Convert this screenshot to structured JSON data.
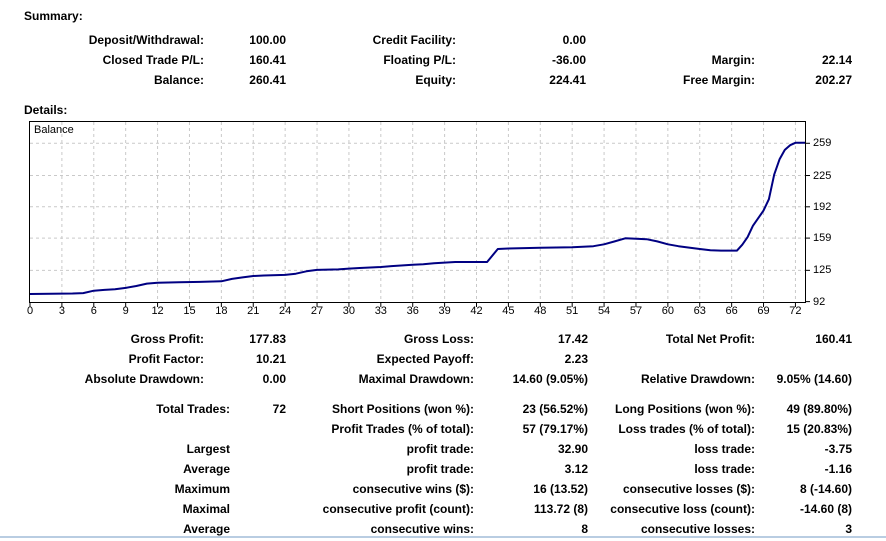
{
  "summary": {
    "title": "Summary:",
    "rows": [
      {
        "l1": "Deposit/Withdrawal:",
        "v1": "100.00",
        "l2": "Credit Facility:",
        "v2": "0.00",
        "l3": "",
        "v3": ""
      },
      {
        "l1": "Closed Trade P/L:",
        "v1": "160.41",
        "l2": "Floating P/L:",
        "v2": "-36.00",
        "l3": "Margin:",
        "v3": "22.14"
      },
      {
        "l1": "Balance:",
        "v1": "260.41",
        "l2": "Equity:",
        "v2": "224.41",
        "l3": "Free Margin:",
        "v3": "202.27"
      }
    ]
  },
  "details": {
    "title": "Details:",
    "stats_a": [
      {
        "l1": "Gross Profit:",
        "v1": "177.83",
        "l2": "Gross Loss:",
        "v2": "17.42",
        "l3": "Total Net Profit:",
        "v3": "160.41"
      },
      {
        "l1": "Profit Factor:",
        "v1": "10.21",
        "l2": "Expected Payoff:",
        "v2": "2.23",
        "l3": "",
        "v3": ""
      },
      {
        "l1": "Absolute Drawdown:",
        "v1": "0.00",
        "l2": "Maximal Drawdown:",
        "v2": "14.60 (9.05%)",
        "l3": "Relative Drawdown:",
        "v3": "9.05% (14.60)"
      }
    ],
    "stats_b": [
      {
        "l1": "Total Trades:",
        "v1": "72",
        "l2": "Short Positions (won %):",
        "v2": "23 (56.52%)",
        "l3": "Long Positions (won %):",
        "v3": "49 (89.80%)"
      },
      {
        "l1": "",
        "v1": "",
        "l2": "Profit Trades (% of total):",
        "v2": "57 (79.17%)",
        "l3": "Loss trades (% of total):",
        "v3": "15 (20.83%)"
      },
      {
        "l1": "Largest",
        "v1": "",
        "l2": "profit trade:",
        "v2": "32.90",
        "l3": "loss trade:",
        "v3": "-3.75"
      },
      {
        "l1": "Average",
        "v1": "",
        "l2": "profit trade:",
        "v2": "3.12",
        "l3": "loss trade:",
        "v3": "-1.16"
      },
      {
        "l1": "Maximum",
        "v1": "",
        "l2": "consecutive wins ($):",
        "v2": "16 (13.52)",
        "l3": "consecutive losses ($):",
        "v3": "8 (-14.60)"
      },
      {
        "l1": "Maximal",
        "v1": "",
        "l2": "consecutive profit (count):",
        "v2": "113.72 (8)",
        "l3": "consecutive loss (count):",
        "v3": "-14.60 (8)"
      },
      {
        "l1": "Average",
        "v1": "",
        "l2": "consecutive wins:",
        "v2": "8",
        "l3": "consecutive losses:",
        "v3": "3"
      }
    ]
  },
  "chart_data": {
    "type": "line",
    "title": "Balance",
    "legend_label": "Balance",
    "grid": "dashed",
    "line_color": "#000082",
    "grid_color": "#c9c9c9",
    "x_tick_labels": [
      0,
      3,
      6,
      9,
      12,
      15,
      18,
      21,
      24,
      27,
      30,
      33,
      36,
      39,
      42,
      45,
      48,
      51,
      54,
      57,
      60,
      63,
      66,
      69,
      72
    ],
    "y_tick_labels": [
      259,
      225,
      192,
      159,
      125,
      92
    ],
    "x_range": [
      0,
      72.9
    ],
    "y_range": [
      91.6,
      282.5
    ],
    "series": [
      {
        "name": "Balance",
        "points": [
          [
            0,
            100
          ],
          [
            2,
            100.3
          ],
          [
            4,
            100.6
          ],
          [
            5,
            101
          ],
          [
            6,
            103.5
          ],
          [
            7,
            104.4
          ],
          [
            8,
            105
          ],
          [
            9,
            106.5
          ],
          [
            10,
            108.5
          ],
          [
            11,
            111
          ],
          [
            12,
            112
          ],
          [
            14,
            112.4
          ],
          [
            16,
            112.8
          ],
          [
            18,
            113.4
          ],
          [
            19,
            116
          ],
          [
            20,
            117.5
          ],
          [
            21,
            119
          ],
          [
            22,
            119.5
          ],
          [
            24,
            120.2
          ],
          [
            25,
            121.5
          ],
          [
            26,
            124
          ],
          [
            27,
            125.5
          ],
          [
            29,
            126
          ],
          [
            30,
            126.8
          ],
          [
            31,
            127.5
          ],
          [
            33,
            128.5
          ],
          [
            34,
            129.5
          ],
          [
            36,
            130.8
          ],
          [
            37,
            131.5
          ],
          [
            38,
            132.5
          ],
          [
            39,
            133.2
          ],
          [
            40,
            133.8
          ],
          [
            43,
            133.8
          ],
          [
            44,
            147.5
          ],
          [
            45,
            148
          ],
          [
            48,
            148.8
          ],
          [
            51,
            149.3
          ],
          [
            52,
            149.8
          ],
          [
            53,
            150.5
          ],
          [
            54,
            152.5
          ],
          [
            55,
            155.5
          ],
          [
            56,
            158.8
          ],
          [
            57,
            158.4
          ],
          [
            58,
            157.8
          ],
          [
            59,
            155.5
          ],
          [
            60,
            152.5
          ],
          [
            61,
            150.5
          ],
          [
            62,
            149
          ],
          [
            63,
            147.5
          ],
          [
            64,
            146.2
          ],
          [
            65,
            145.8
          ],
          [
            66.5,
            145.8
          ],
          [
            67,
            152
          ],
          [
            67.5,
            160
          ],
          [
            68,
            172
          ],
          [
            68.5,
            180
          ],
          [
            69,
            188
          ],
          [
            69.5,
            200
          ],
          [
            70,
            226
          ],
          [
            70.5,
            242
          ],
          [
            71,
            252
          ],
          [
            71.5,
            257
          ],
          [
            72,
            259.5
          ],
          [
            72.9,
            259.5
          ]
        ]
      }
    ]
  }
}
